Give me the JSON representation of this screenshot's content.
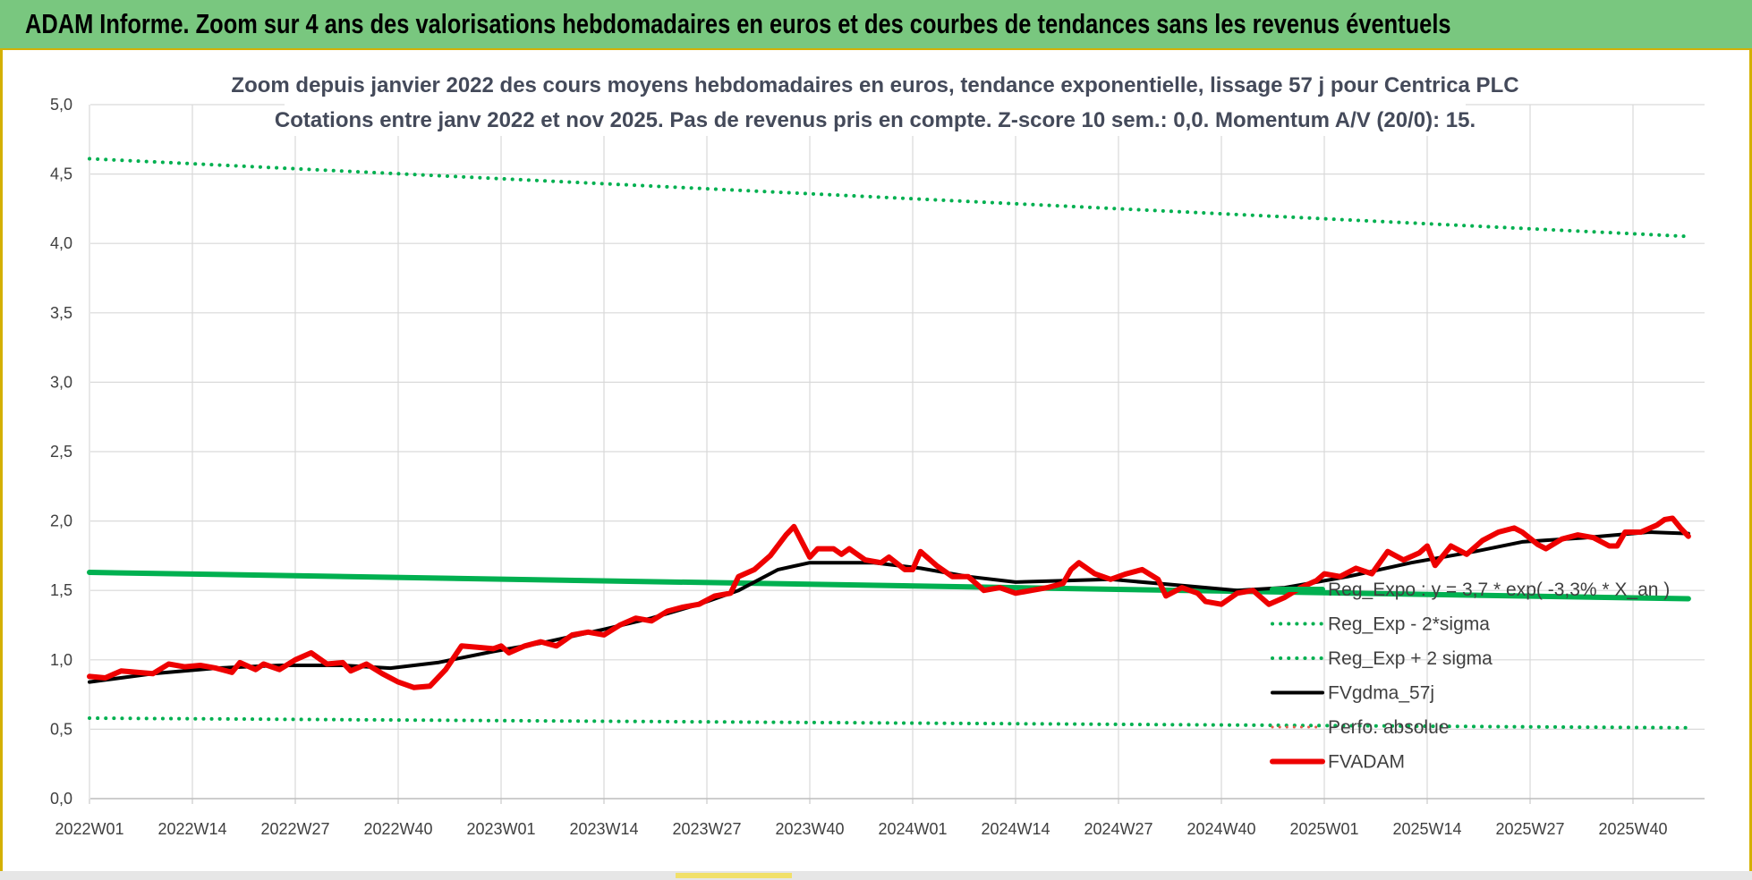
{
  "header": {
    "title": "ADAM Informe. Zoom sur 4 ans des valorisations hebdomadaires en euros et des courbes de tendances sans les revenus éventuels"
  },
  "chart_data": {
    "type": "line",
    "title_line1": "Zoom depuis janvier 2022 des cours moyens hebdomadaires en euros, tendance exponentielle, lissage 57 j pour Centrica PLC",
    "title_line2": "Cotations entre janv 2022 et nov 2025. Pas de revenus pris en compte. Z-score 10 sem.: 0,0. Momentum A/V (20/0): 15.",
    "xlabel": "",
    "ylabel": "",
    "ylim": [
      0,
      5
    ],
    "y_ticks": [
      "0,0",
      "0,5",
      "1,0",
      "1,5",
      "2,0",
      "2,5",
      "3,0",
      "3,5",
      "4,0",
      "4,5",
      "5,0"
    ],
    "x_tick_labels": [
      "2022W01",
      "2022W14",
      "2022W27",
      "2022W40",
      "2023W01",
      "2023W14",
      "2023W27",
      "2023W40",
      "2024W01",
      "2024W14",
      "2024W27",
      "2024W40",
      "2025W01",
      "2025W14",
      "2025W27",
      "2025W40"
    ],
    "grid": true,
    "legend_position": "bottom-right",
    "colors": {
      "reg_expo": "#00b050",
      "reg_exp_bands": "#00b050",
      "fvgdma": "#000000",
      "perfo_absolue": "#e65c4d",
      "fvadam": "#ee0000",
      "grid": "#d9d9d9",
      "banner": "#79c77f"
    },
    "x_range": [
      "2022W01",
      "2025W47"
    ],
    "series": [
      {
        "name": "Reg_Expo : y = 3,7 * exp( -3,3% * X_an )",
        "style": "solid-thick",
        "points": [
          [
            "2022W01",
            1.63
          ],
          [
            "2025W47",
            1.44
          ]
        ]
      },
      {
        "name": "Reg_Exp - 2*sigma",
        "style": "dotted",
        "points": [
          [
            "2022W01",
            0.58
          ],
          [
            "2025W47",
            0.51
          ]
        ]
      },
      {
        "name": "Reg_Exp + 2 sigma",
        "style": "dotted",
        "points": [
          [
            "2022W01",
            4.61
          ],
          [
            "2025W47",
            4.05
          ]
        ]
      },
      {
        "name": "FVgdma_57j",
        "style": "solid",
        "points": [
          [
            "2022W01",
            0.84
          ],
          [
            "2022W09",
            0.9
          ],
          [
            "2022W17",
            0.94
          ],
          [
            "2022W25",
            0.96
          ],
          [
            "2022W33",
            0.96
          ],
          [
            "2022W39",
            0.94
          ],
          [
            "2022W45",
            0.98
          ],
          [
            "2022W52",
            1.06
          ],
          [
            "2023W06",
            1.12
          ],
          [
            "2023W14",
            1.22
          ],
          [
            "2023W20",
            1.3
          ],
          [
            "2023W26",
            1.4
          ],
          [
            "2023W31",
            1.5
          ],
          [
            "2023W36",
            1.65
          ],
          [
            "2023W40",
            1.7
          ],
          [
            "2023W48",
            1.7
          ],
          [
            "2024W02",
            1.66
          ],
          [
            "2024W08",
            1.6
          ],
          [
            "2024W14",
            1.56
          ],
          [
            "2024W26",
            1.58
          ],
          [
            "2024W36",
            1.53
          ],
          [
            "2024W42",
            1.5
          ],
          [
            "2024W48",
            1.52
          ],
          [
            "2025W04",
            1.6
          ],
          [
            "2025W12",
            1.7
          ],
          [
            "2025W20",
            1.78
          ],
          [
            "2025W26",
            1.85
          ],
          [
            "2025W34",
            1.88
          ],
          [
            "2025W42",
            1.92
          ],
          [
            "2025W47",
            1.91
          ]
        ]
      },
      {
        "name": "Perfo. absolue",
        "style": "dotted",
        "points": []
      },
      {
        "name": "FVADAM",
        "style": "solid-thick",
        "points": [
          [
            "2022W01",
            0.88
          ],
          [
            "2022W03",
            0.87
          ],
          [
            "2022W05",
            0.92
          ],
          [
            "2022W07",
            0.91
          ],
          [
            "2022W09",
            0.9
          ],
          [
            "2022W11",
            0.97
          ],
          [
            "2022W13",
            0.95
          ],
          [
            "2022W15",
            0.96
          ],
          [
            "2022W17",
            0.94
          ],
          [
            "2022W19",
            0.91
          ],
          [
            "2022W20",
            0.98
          ],
          [
            "2022W22",
            0.93
          ],
          [
            "2022W23",
            0.97
          ],
          [
            "2022W25",
            0.93
          ],
          [
            "2022W27",
            1.0
          ],
          [
            "2022W29",
            1.05
          ],
          [
            "2022W31",
            0.97
          ],
          [
            "2022W33",
            0.98
          ],
          [
            "2022W34",
            0.92
          ],
          [
            "2022W36",
            0.97
          ],
          [
            "2022W38",
            0.9
          ],
          [
            "2022W40",
            0.84
          ],
          [
            "2022W42",
            0.8
          ],
          [
            "2022W44",
            0.81
          ],
          [
            "2022W46",
            0.93
          ],
          [
            "2022W48",
            1.1
          ],
          [
            "2022W50",
            1.09
          ],
          [
            "2022W52",
            1.08
          ],
          [
            "2023W01",
            1.1
          ],
          [
            "2023W02",
            1.05
          ],
          [
            "2023W04",
            1.1
          ],
          [
            "2023W06",
            1.13
          ],
          [
            "2023W08",
            1.1
          ],
          [
            "2023W10",
            1.18
          ],
          [
            "2023W12",
            1.2
          ],
          [
            "2023W14",
            1.18
          ],
          [
            "2023W16",
            1.25
          ],
          [
            "2023W18",
            1.3
          ],
          [
            "2023W20",
            1.28
          ],
          [
            "2023W22",
            1.35
          ],
          [
            "2023W24",
            1.38
          ],
          [
            "2023W26",
            1.4
          ],
          [
            "2023W28",
            1.46
          ],
          [
            "2023W30",
            1.48
          ],
          [
            "2023W31",
            1.6
          ],
          [
            "2023W33",
            1.65
          ],
          [
            "2023W35",
            1.75
          ],
          [
            "2023W37",
            1.9
          ],
          [
            "2023W38",
            1.96
          ],
          [
            "2023W40",
            1.74
          ],
          [
            "2023W41",
            1.8
          ],
          [
            "2023W43",
            1.8
          ],
          [
            "2023W44",
            1.76
          ],
          [
            "2023W45",
            1.8
          ],
          [
            "2023W47",
            1.72
          ],
          [
            "2023W49",
            1.7
          ],
          [
            "2023W50",
            1.74
          ],
          [
            "2023W52",
            1.65
          ],
          [
            "2024W01",
            1.65
          ],
          [
            "2024W02",
            1.78
          ],
          [
            "2024W04",
            1.68
          ],
          [
            "2024W06",
            1.6
          ],
          [
            "2024W08",
            1.6
          ],
          [
            "2024W09",
            1.55
          ],
          [
            "2024W10",
            1.5
          ],
          [
            "2024W12",
            1.52
          ],
          [
            "2024W14",
            1.48
          ],
          [
            "2024W16",
            1.5
          ],
          [
            "2024W18",
            1.52
          ],
          [
            "2024W20",
            1.55
          ],
          [
            "2024W21",
            1.65
          ],
          [
            "2024W22",
            1.7
          ],
          [
            "2024W24",
            1.62
          ],
          [
            "2024W26",
            1.58
          ],
          [
            "2024W28",
            1.62
          ],
          [
            "2024W30",
            1.65
          ],
          [
            "2024W32",
            1.58
          ],
          [
            "2024W33",
            1.46
          ],
          [
            "2024W35",
            1.52
          ],
          [
            "2024W37",
            1.48
          ],
          [
            "2024W38",
            1.42
          ],
          [
            "2024W40",
            1.4
          ],
          [
            "2024W42",
            1.48
          ],
          [
            "2024W44",
            1.5
          ],
          [
            "2024W46",
            1.4
          ],
          [
            "2024W48",
            1.45
          ],
          [
            "2024W50",
            1.52
          ],
          [
            "2024W52",
            1.57
          ],
          [
            "2025W01",
            1.62
          ],
          [
            "2025W03",
            1.6
          ],
          [
            "2025W05",
            1.66
          ],
          [
            "2025W07",
            1.62
          ],
          [
            "2025W09",
            1.78
          ],
          [
            "2025W11",
            1.72
          ],
          [
            "2025W13",
            1.77
          ],
          [
            "2025W14",
            1.82
          ],
          [
            "2025W15",
            1.68
          ],
          [
            "2025W17",
            1.82
          ],
          [
            "2025W19",
            1.76
          ],
          [
            "2025W21",
            1.86
          ],
          [
            "2025W23",
            1.92
          ],
          [
            "2025W25",
            1.95
          ],
          [
            "2025W26",
            1.92
          ],
          [
            "2025W28",
            1.83
          ],
          [
            "2025W29",
            1.8
          ],
          [
            "2025W31",
            1.87
          ],
          [
            "2025W33",
            1.9
          ],
          [
            "2025W35",
            1.88
          ],
          [
            "2025W37",
            1.82
          ],
          [
            "2025W38",
            1.82
          ],
          [
            "2025W39",
            1.92
          ],
          [
            "2025W41",
            1.92
          ],
          [
            "2025W43",
            1.97
          ],
          [
            "2025W44",
            2.01
          ],
          [
            "2025W45",
            2.02
          ],
          [
            "2025W46",
            1.95
          ],
          [
            "2025W47",
            1.89
          ]
        ]
      }
    ]
  }
}
